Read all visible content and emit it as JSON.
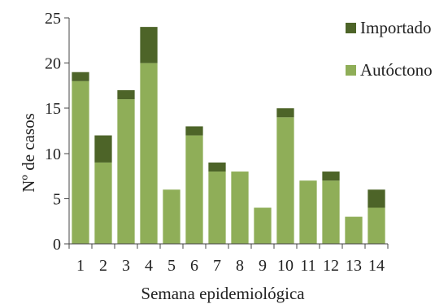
{
  "chart_data": {
    "type": "bar",
    "stacked": true,
    "categories": [
      "1",
      "2",
      "3",
      "4",
      "5",
      "6",
      "7",
      "8",
      "9",
      "10",
      "11",
      "12",
      "13",
      "14"
    ],
    "series": [
      {
        "name": "Autóctono",
        "color": "#8fae58",
        "values": [
          18,
          9,
          16,
          20,
          6,
          12,
          8,
          8,
          4,
          14,
          7,
          7,
          3,
          4
        ]
      },
      {
        "name": "Importado",
        "color": "#4d6428",
        "values": [
          1,
          3,
          1,
          4,
          0,
          1,
          1,
          0,
          0,
          1,
          0,
          1,
          0,
          2
        ]
      }
    ],
    "xlabel": "Semana epidemiológica",
    "ylabel": "Nº de casos",
    "ylim": [
      0,
      25
    ],
    "yticks": [
      0,
      5,
      10,
      15,
      20,
      25
    ],
    "grid": false,
    "legend_position": "top-right",
    "legend_order": [
      "Importado",
      "Autóctono"
    ]
  }
}
